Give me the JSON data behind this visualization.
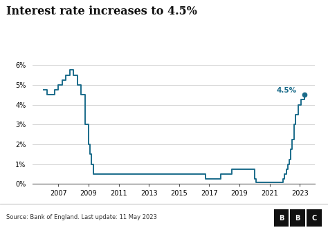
{
  "title": "Interest rate increases to 4.5%",
  "source_text": "Source: Bank of England. Last update: 11 May 2023",
  "line_color": "#1a6b8a",
  "dot_color": "#1a6b8a",
  "background_color": "#ffffff",
  "ylim": [
    0,
    6.5
  ],
  "yticks": [
    0,
    1,
    2,
    3,
    4,
    5,
    6
  ],
  "ytick_labels": [
    "0%",
    "1%",
    "2%",
    "3%",
    "4%",
    "5%",
    "6%"
  ],
  "annotation_text": "4.5%",
  "xlim": [
    2005.3,
    2024.0
  ],
  "xticks": [
    2007,
    2009,
    2011,
    2013,
    2015,
    2017,
    2019,
    2021,
    2023
  ],
  "data": [
    [
      2006.0,
      4.75
    ],
    [
      2006.25,
      4.5
    ],
    [
      2006.5,
      4.5
    ],
    [
      2006.75,
      4.75
    ],
    [
      2007.0,
      5.0
    ],
    [
      2007.25,
      5.25
    ],
    [
      2007.5,
      5.5
    ],
    [
      2007.75,
      5.75
    ],
    [
      2008.0,
      5.5
    ],
    [
      2008.25,
      5.0
    ],
    [
      2008.5,
      4.5
    ],
    [
      2008.75,
      3.0
    ],
    [
      2009.0,
      2.0
    ],
    [
      2009.1,
      1.5
    ],
    [
      2009.2,
      1.0
    ],
    [
      2009.3,
      0.5
    ],
    [
      2009.4,
      0.5
    ],
    [
      2016.5,
      0.5
    ],
    [
      2016.75,
      0.25
    ],
    [
      2017.0,
      0.25
    ],
    [
      2017.75,
      0.5
    ],
    [
      2018.0,
      0.5
    ],
    [
      2018.5,
      0.75
    ],
    [
      2019.0,
      0.75
    ],
    [
      2019.75,
      0.75
    ],
    [
      2020.0,
      0.25
    ],
    [
      2020.1,
      0.1
    ],
    [
      2020.2,
      0.1
    ],
    [
      2021.75,
      0.1
    ],
    [
      2021.9,
      0.25
    ],
    [
      2022.0,
      0.5
    ],
    [
      2022.1,
      0.75
    ],
    [
      2022.2,
      1.0
    ],
    [
      2022.3,
      1.25
    ],
    [
      2022.4,
      1.75
    ],
    [
      2022.5,
      2.25
    ],
    [
      2022.6,
      3.0
    ],
    [
      2022.7,
      3.5
    ],
    [
      2022.8,
      3.5
    ],
    [
      2022.9,
      4.0
    ],
    [
      2023.0,
      4.0
    ],
    [
      2023.1,
      4.25
    ],
    [
      2023.3,
      4.5
    ]
  ]
}
